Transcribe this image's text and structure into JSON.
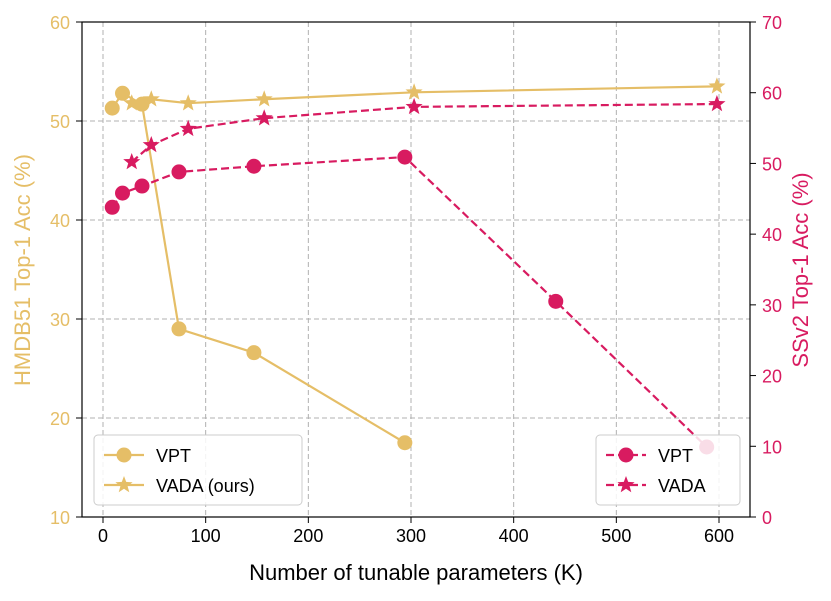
{
  "chart_data": {
    "type": "line",
    "xlabel": "Number of tunable parameters (K)",
    "ylabel_left": "HMDB51 Top-1 Acc (%)",
    "ylabel_right": "SSv2 Top-1 Acc (%)",
    "xlim": [
      -22,
      630
    ],
    "ylim_left": [
      10,
      60
    ],
    "ylim_right": [
      0,
      70
    ],
    "xticks": [
      0,
      100,
      200,
      300,
      400,
      500,
      600
    ],
    "yticks_left": [
      10,
      20,
      30,
      40,
      50,
      60
    ],
    "yticks_right": [
      0,
      10,
      20,
      30,
      40,
      50,
      60,
      70
    ],
    "grid": true,
    "colors": {
      "left": "#E5BE67",
      "right": "#D81B60"
    },
    "series": [
      {
        "name": "VPT",
        "axis": "left",
        "marker": "circle",
        "dash": false,
        "x": [
          9,
          19,
          38,
          74,
          147,
          294
        ],
        "y": [
          51.3,
          52.8,
          51.7,
          29.0,
          26.6,
          17.5
        ]
      },
      {
        "name": "VADA (ours)",
        "axis": "left",
        "marker": "star",
        "dash": false,
        "x": [
          28,
          47,
          83,
          157,
          303,
          598
        ],
        "y": [
          51.8,
          52.2,
          51.8,
          52.2,
          52.9,
          53.5
        ]
      },
      {
        "name": "VPT",
        "axis": "right",
        "marker": "circle",
        "dash": true,
        "x": [
          9,
          19,
          38,
          74,
          147,
          294,
          441,
          588
        ],
        "y": [
          43.8,
          45.8,
          46.8,
          48.8,
          49.6,
          50.9,
          30.5,
          9.9
        ]
      },
      {
        "name": "VADA",
        "axis": "right",
        "marker": "star",
        "dash": true,
        "x": [
          28,
          47,
          83,
          157,
          303,
          598
        ],
        "y": [
          50.2,
          52.6,
          54.9,
          56.4,
          58.0,
          58.4
        ]
      }
    ],
    "legends": [
      {
        "placement": "lower-left",
        "entries": [
          "VPT",
          "VADA (ours)"
        ]
      },
      {
        "placement": "lower-right",
        "entries": [
          "VPT",
          "VADA"
        ]
      }
    ]
  }
}
